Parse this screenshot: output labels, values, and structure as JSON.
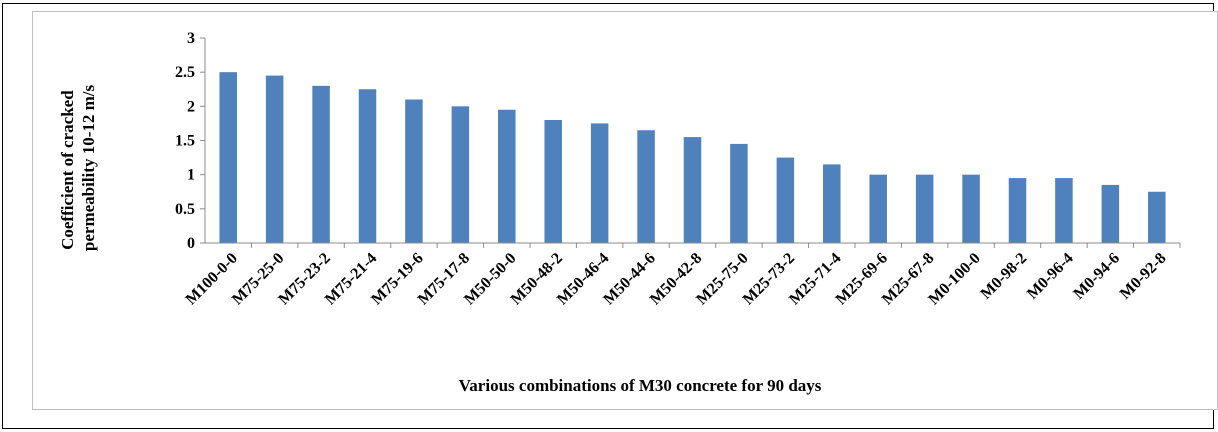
{
  "chart_data": {
    "type": "bar",
    "title": "",
    "xlabel": "Various combinations of M30 concrete for 90 days",
    "ylabel_lines": [
      "Coefficient of cracked",
      "permeability 10-12 m/s"
    ],
    "ylim": [
      0,
      3
    ],
    "yticks": [
      "0",
      "0.5",
      "1",
      "1.5",
      "2",
      "2.5",
      "3"
    ],
    "grid": false,
    "legend": "none",
    "bar_color": "#4f81bd",
    "categories": [
      "M100-0-0",
      "M75-25-0",
      "M75-23-2",
      "M75-21-4",
      "M75-19-6",
      "M75-17-8",
      "M50-50-0",
      "M50-48-2",
      "M50-46-4",
      "M50-44-6",
      "M50-42-8",
      "M25-75-0",
      "M25-73-2",
      "M25-71-4",
      "M25-69-6",
      "M25-67-8",
      "M0-100-0",
      "M0-98-2",
      "M0-96-4",
      "M0-94-6",
      "M0-92-8"
    ],
    "values": [
      2.5,
      2.45,
      2.3,
      2.25,
      2.1,
      2.0,
      1.95,
      1.8,
      1.75,
      1.65,
      1.55,
      1.45,
      1.25,
      1.15,
      1.0,
      1.0,
      1.0,
      0.95,
      0.95,
      0.85,
      0.75
    ]
  }
}
